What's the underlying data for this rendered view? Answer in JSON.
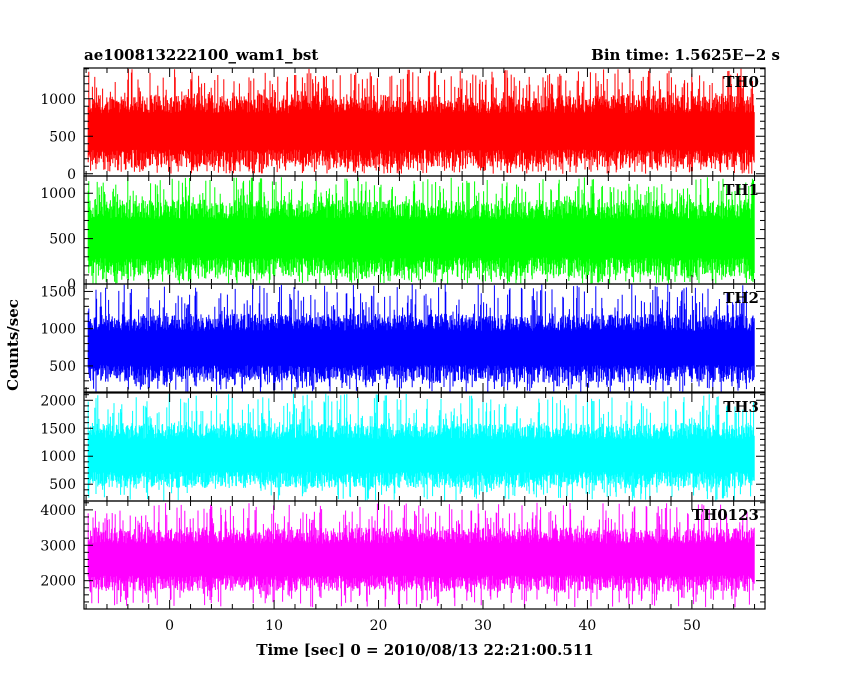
{
  "header": {
    "left_title": "ae100813222100_wam1_bst",
    "right_title": "Bin time: 1.5625E−2 s"
  },
  "chart_data": {
    "type": "line",
    "title": "ae100813222100_wam1_bst",
    "subtitle": "Bin time: 1.5625E−2 s",
    "xlabel": "Time [sec] 0 = 2010/08/13 22:21:00.511",
    "ylabel": "Counts/sec",
    "xlim": [
      -8.2,
      57
    ],
    "data_x_range": [
      -7.8,
      56
    ],
    "x_ticks": [
      0,
      10,
      20,
      30,
      40,
      50
    ],
    "x_tick_labels": [
      "0",
      "10",
      "20",
      "30",
      "40",
      "50"
    ],
    "panels": [
      {
        "name": "TH0",
        "color": "#ff0000",
        "ylim": [
          -30,
          1410
        ],
        "y_ticks": [
          0,
          500,
          1000
        ],
        "y_tick_labels": [
          "0",
          "500",
          "1000"
        ],
        "band_low": 80,
        "band_high": 1050,
        "peak_max": 1400,
        "dip_min": 0
      },
      {
        "name": "TH1",
        "color": "#00ff00",
        "ylim": [
          0,
          1190
        ],
        "y_ticks": [
          0,
          500,
          1000
        ],
        "y_tick_labels": [
          "0",
          "500",
          "1000"
        ],
        "band_low": 80,
        "band_high": 930,
        "peak_max": 1180,
        "dip_min": 0
      },
      {
        "name": "TH2",
        "color": "#0000ff",
        "ylim": [
          150,
          1600
        ],
        "y_ticks": [
          500,
          1000,
          1500
        ],
        "y_tick_labels": [
          "500",
          "1000",
          "1500"
        ],
        "band_low": 280,
        "band_high": 1200,
        "peak_max": 1600,
        "dip_min": 150
      },
      {
        "name": "TH3",
        "color": "#00ffff",
        "ylim": [
          200,
          2130
        ],
        "y_ticks": [
          500,
          1000,
          1500,
          2000
        ],
        "y_tick_labels": [
          "500",
          "1000",
          "1500",
          "2000"
        ],
        "band_low": 430,
        "band_high": 1600,
        "peak_max": 2120,
        "dip_min": 200
      },
      {
        "name": "TH0123",
        "color": "#ff00ff",
        "ylim": [
          1200,
          4250
        ],
        "y_ticks": [
          2000,
          3000,
          4000
        ],
        "y_tick_labels": [
          "2000",
          "3000",
          "4000"
        ],
        "band_low": 1700,
        "band_high": 3500,
        "peak_max": 4200,
        "dip_min": 1250
      }
    ]
  }
}
